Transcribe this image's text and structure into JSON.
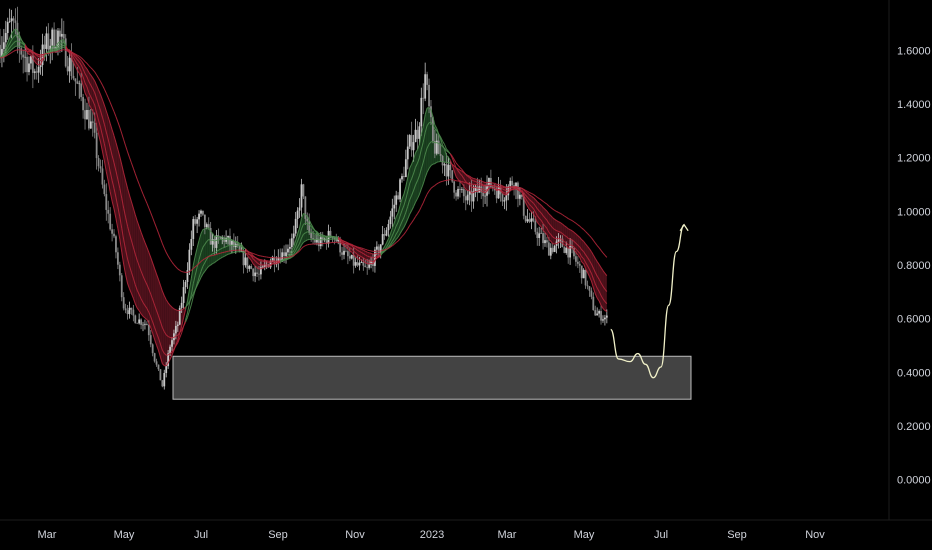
{
  "chart_data": {
    "type": "candlestick",
    "x_ticks": [
      "Mar",
      "May",
      "Jul",
      "Sep",
      "Nov",
      "2023",
      "Mar",
      "May",
      "Jul",
      "Sep",
      "Nov"
    ],
    "y_ticks": [
      "1.6000",
      "1.4000",
      "1.2000",
      "1.0000",
      "0.8000",
      "0.6000",
      "0.4000",
      "0.2000",
      "0.0000"
    ],
    "ylim": [
      -0.15,
      1.75
    ],
    "price_path": [
      {
        "t": 0,
        "v": 1.62
      },
      {
        "t": 3,
        "v": 1.7
      },
      {
        "t": 6,
        "v": 1.58
      },
      {
        "t": 9,
        "v": 1.52
      },
      {
        "t": 12,
        "v": 1.62
      },
      {
        "t": 15,
        "v": 1.66
      },
      {
        "t": 18,
        "v": 1.55
      },
      {
        "t": 21,
        "v": 1.42
      },
      {
        "t": 24,
        "v": 1.3
      },
      {
        "t": 27,
        "v": 1.05
      },
      {
        "t": 30,
        "v": 0.85
      },
      {
        "t": 32,
        "v": 0.65
      },
      {
        "t": 35,
        "v": 0.6
      },
      {
        "t": 38,
        "v": 0.58
      },
      {
        "t": 40,
        "v": 0.45
      },
      {
        "t": 42,
        "v": 0.35
      },
      {
        "t": 44,
        "v": 0.5
      },
      {
        "t": 46,
        "v": 0.58
      },
      {
        "t": 48,
        "v": 0.75
      },
      {
        "t": 50,
        "v": 0.95
      },
      {
        "t": 52,
        "v": 0.98
      },
      {
        "t": 55,
        "v": 0.88
      },
      {
        "t": 58,
        "v": 0.9
      },
      {
        "t": 61,
        "v": 0.86
      },
      {
        "t": 64,
        "v": 0.8
      },
      {
        "t": 67,
        "v": 0.76
      },
      {
        "t": 70,
        "v": 0.82
      },
      {
        "t": 73,
        "v": 0.84
      },
      {
        "t": 76,
        "v": 0.9
      },
      {
        "t": 78,
        "v": 1.08
      },
      {
        "t": 80,
        "v": 0.9
      },
      {
        "t": 83,
        "v": 0.88
      },
      {
        "t": 86,
        "v": 0.92
      },
      {
        "t": 89,
        "v": 0.84
      },
      {
        "t": 92,
        "v": 0.8
      },
      {
        "t": 95,
        "v": 0.78
      },
      {
        "t": 98,
        "v": 0.86
      },
      {
        "t": 101,
        "v": 0.98
      },
      {
        "t": 104,
        "v": 1.12
      },
      {
        "t": 106,
        "v": 1.25
      },
      {
        "t": 108,
        "v": 1.3
      },
      {
        "t": 110,
        "v": 1.5
      },
      {
        "t": 112,
        "v": 1.25
      },
      {
        "t": 115,
        "v": 1.18
      },
      {
        "t": 118,
        "v": 1.08
      },
      {
        "t": 121,
        "v": 1.04
      },
      {
        "t": 124,
        "v": 1.08
      },
      {
        "t": 127,
        "v": 1.1
      },
      {
        "t": 130,
        "v": 1.06
      },
      {
        "t": 133,
        "v": 1.12
      },
      {
        "t": 136,
        "v": 0.98
      },
      {
        "t": 139,
        "v": 0.92
      },
      {
        "t": 142,
        "v": 0.86
      },
      {
        "t": 145,
        "v": 0.88
      },
      {
        "t": 148,
        "v": 0.84
      },
      {
        "t": 151,
        "v": 0.76
      },
      {
        "t": 154,
        "v": 0.62
      },
      {
        "t": 157,
        "v": 0.6
      }
    ],
    "support_zone": {
      "y_low": 0.3,
      "y_high": 0.46
    },
    "projection": [
      {
        "t": 158,
        "v": 0.56
      },
      {
        "t": 160,
        "v": 0.45
      },
      {
        "t": 163,
        "v": 0.44
      },
      {
        "t": 165,
        "v": 0.47
      },
      {
        "t": 167,
        "v": 0.43
      },
      {
        "t": 169,
        "v": 0.38
      },
      {
        "t": 171,
        "v": 0.42
      },
      {
        "t": 173,
        "v": 0.65
      },
      {
        "t": 175,
        "v": 0.85
      },
      {
        "t": 177,
        "v": 0.95
      }
    ],
    "colors": {
      "background": "#000000",
      "candle_up": "#c8c8c8",
      "candle_down": "#8a8a8a",
      "ma_bear": "#b3263a",
      "ma_bull": "#4d8a4d",
      "fill_bear": "#5a1420",
      "fill_bull": "#1f4a24",
      "zone_fill": "#5a5a5a",
      "zone_border": "#bdbdbd",
      "projection": "#f0f0c8",
      "axis_text": "#d1d4dc"
    }
  }
}
